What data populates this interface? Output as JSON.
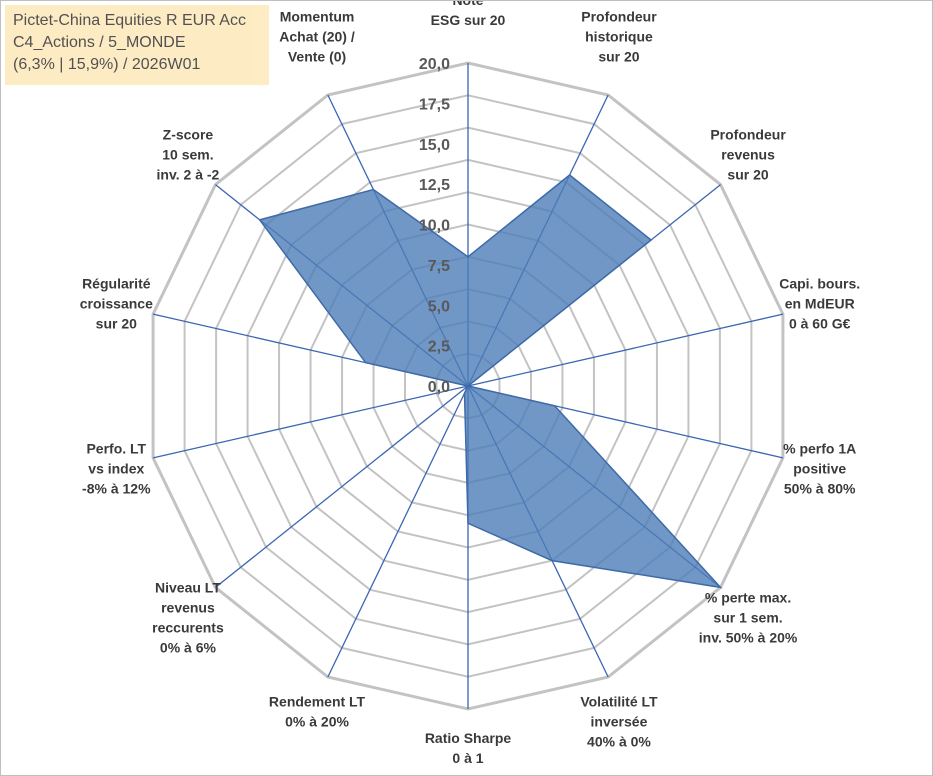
{
  "info": {
    "line1": "Pictet-China Equities R EUR Acc",
    "line2": "C4_Actions / 5_MONDE",
    "line3": "(6,3% | 15,9%) / 2026W01"
  },
  "chart_data": {
    "type": "radar",
    "rlim": [
      0,
      20
    ],
    "ticks": [
      "0,0",
      "2,5",
      "5,0",
      "7,5",
      "10,0",
      "12,5",
      "15,0",
      "17,5",
      "20,0"
    ],
    "tick_values": [
      0,
      2.5,
      5,
      7.5,
      10,
      12.5,
      15,
      17.5,
      20
    ],
    "axes": [
      {
        "label": [
          "Note",
          "ESG sur 20"
        ]
      },
      {
        "label": [
          "Profondeur",
          "historique",
          "sur 20"
        ]
      },
      {
        "label": [
          "Profondeur",
          "revenus",
          "sur 20"
        ]
      },
      {
        "label": [
          "Capi. bours.",
          "en MdEUR",
          "0 à 60 G€"
        ]
      },
      {
        "label": [
          "% perfo 1A",
          "positive",
          "50% à 80%"
        ]
      },
      {
        "label": [
          "% perte max.",
          "sur 1 sem.",
          "inv. 50% à 20%"
        ]
      },
      {
        "label": [
          "Volatilité LT",
          "inversée",
          "40% à 0%"
        ]
      },
      {
        "label": [
          "Ratio Sharpe",
          "0 à 1"
        ]
      },
      {
        "label": [
          "Rendement LT",
          "0% à 20%"
        ]
      },
      {
        "label": [
          "Niveau LT",
          "revenus",
          "reccurents",
          "0% à 6%"
        ]
      },
      {
        "label": [
          "Perfo. LT",
          "vs index",
          "-8% à 12%"
        ]
      },
      {
        "label": [
          "Régularité",
          "croissance",
          "sur 20"
        ]
      },
      {
        "label": [
          "Z-score",
          "10 sem.",
          "inv. 2 à -2"
        ]
      },
      {
        "label": [
          "Momentum",
          "Achat (20) /",
          "Vente (0)"
        ]
      }
    ],
    "series": [
      {
        "values": [
          8.0,
          14.5,
          14.5,
          0.0,
          5.5,
          20.0,
          12.0,
          8.5,
          0.5,
          0.0,
          0.0,
          6.5,
          16.5,
          13.5
        ]
      }
    ],
    "colors": {
      "fill": "#4e7db8",
      "line": "#3d6aa8",
      "axis": "#3b66b3",
      "grid": "#c3c3c3"
    }
  }
}
